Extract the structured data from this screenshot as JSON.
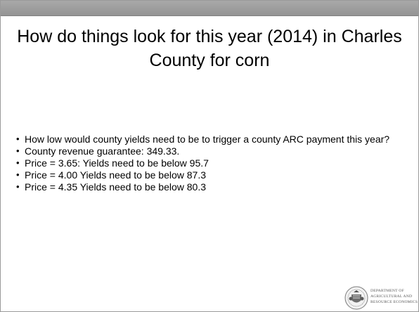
{
  "slide": {
    "title": "How do things look for this year (2014) in Charles County for corn",
    "bullets": [
      "How low would county yields need to be to trigger a county ARC payment this year?",
      "County revenue guarantee:  349.33.",
      "Price = 3.65:  Yields need to be below 95.7",
      "Price = 4.00  Yields need to be below 87.3",
      "Price = 4.35  Yields need to be below 80.3"
    ]
  },
  "logo": {
    "icon": "university-seal-icon",
    "lines": [
      "DEPARTMENT OF",
      "AGRICULTURAL AND",
      "RESOURCE ECONOMICS"
    ]
  }
}
